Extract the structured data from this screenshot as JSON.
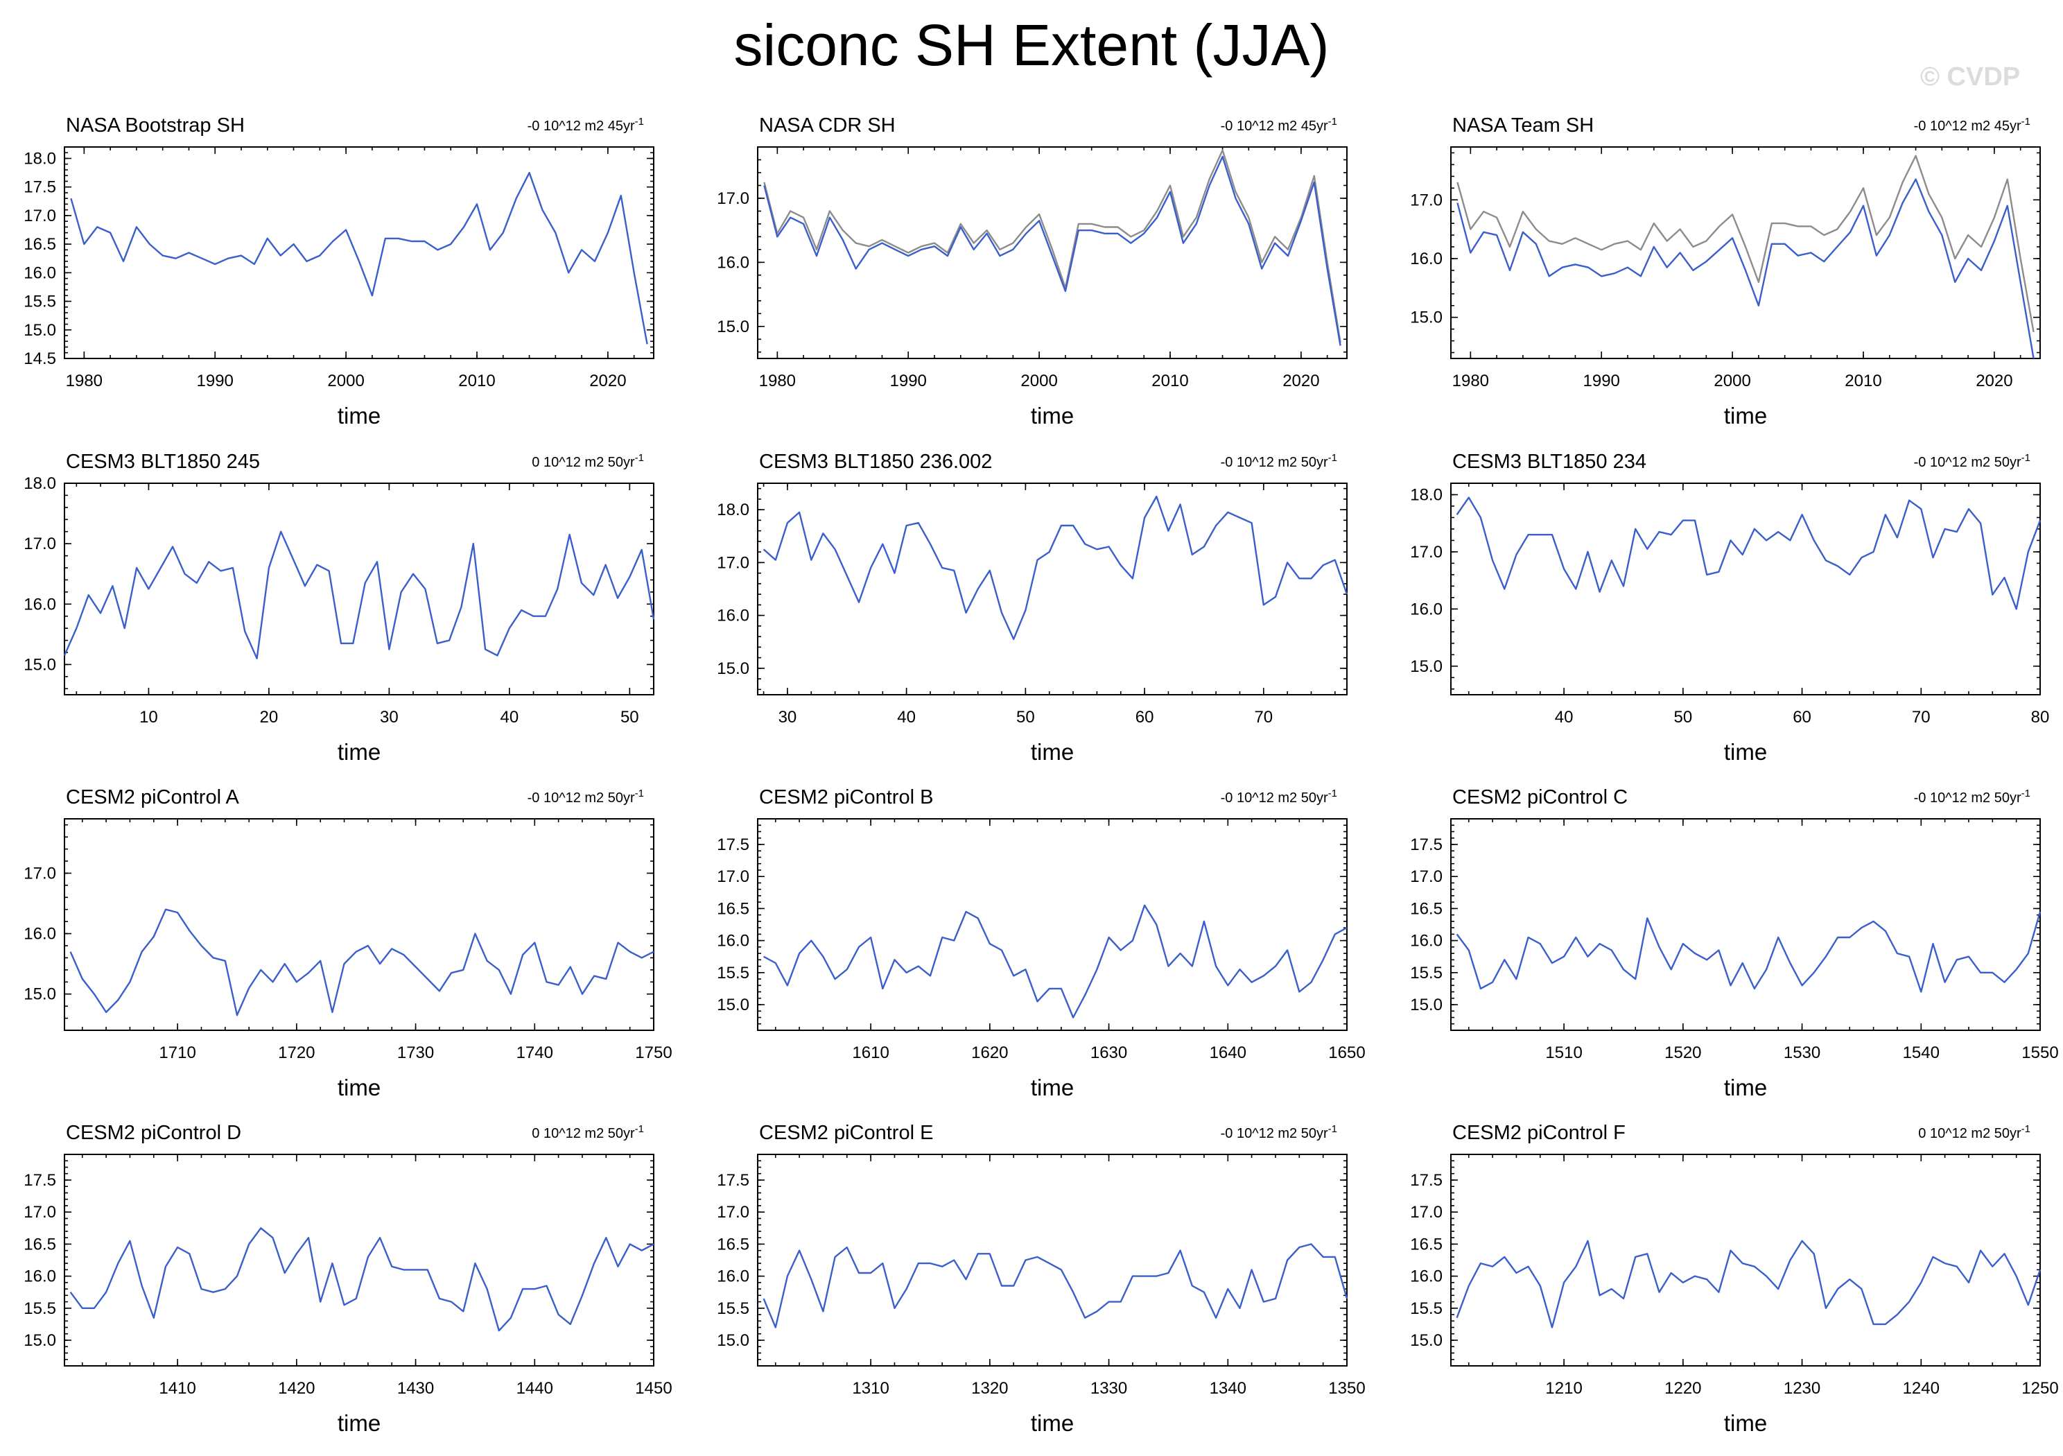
{
  "title": "siconc SH Extent (JJA)",
  "copyright": "© CVDP",
  "colors": {
    "primary": "#3a5fcd",
    "secondary": "#8c8c8c"
  },
  "chart_data": [
    {
      "type": "line",
      "title": "NASA Bootstrap SH",
      "trend": "-0 10^12 m2 45yr",
      "trend_sup": "-1",
      "xlabel": "time",
      "xlim": [
        1978.5,
        2023.5
      ],
      "ylim": [
        14.5,
        18.2
      ],
      "xticks": [
        1980,
        1990,
        2000,
        2010,
        2020
      ],
      "yticks": [
        14.5,
        15.0,
        15.5,
        16.0,
        16.5,
        17.0,
        17.5,
        18.0
      ],
      "x_start": 1979,
      "series": [
        {
          "values": [
            17.3,
            16.5,
            16.8,
            16.7,
            16.2,
            16.8,
            16.5,
            16.3,
            16.25,
            16.35,
            16.25,
            16.15,
            16.25,
            16.3,
            16.15,
            16.6,
            16.3,
            16.5,
            16.2,
            16.3,
            16.55,
            16.75,
            16.2,
            15.6,
            16.6,
            16.6,
            16.55,
            16.55,
            16.4,
            16.5,
            16.8,
            17.2,
            16.4,
            16.7,
            17.3,
            17.75,
            17.1,
            16.7,
            16.0,
            16.4,
            16.2,
            16.7,
            17.35,
            16.0,
            14.75
          ]
        }
      ]
    },
    {
      "type": "line",
      "title": "NASA CDR SH",
      "trend": "-0 10^12 m2 45yr",
      "trend_sup": "-1",
      "xlabel": "time",
      "xlim": [
        1978.5,
        2023.5
      ],
      "ylim": [
        14.5,
        17.8
      ],
      "xticks": [
        1980,
        1990,
        2000,
        2010,
        2020
      ],
      "yticks": [
        15.0,
        16.0,
        17.0
      ],
      "x_start": 1979,
      "series": [
        {
          "values": [
            17.25,
            16.45,
            16.8,
            16.7,
            16.2,
            16.8,
            16.5,
            16.3,
            16.25,
            16.35,
            16.25,
            16.15,
            16.25,
            16.3,
            16.15,
            16.6,
            16.3,
            16.5,
            16.2,
            16.3,
            16.55,
            16.75,
            16.2,
            15.6,
            16.6,
            16.6,
            16.55,
            16.55,
            16.4,
            16.5,
            16.8,
            17.2,
            16.4,
            16.7,
            17.3,
            17.75,
            17.1,
            16.7,
            16.0,
            16.4,
            16.2,
            16.7,
            17.35,
            16.0,
            14.75
          ],
          "color": "secondary"
        },
        {
          "values": [
            17.2,
            16.4,
            16.7,
            16.6,
            16.1,
            16.7,
            16.35,
            15.9,
            16.2,
            16.3,
            16.2,
            16.1,
            16.2,
            16.25,
            16.1,
            16.55,
            16.2,
            16.45,
            16.1,
            16.2,
            16.45,
            16.65,
            16.1,
            15.55,
            16.5,
            16.5,
            16.45,
            16.45,
            16.3,
            16.45,
            16.7,
            17.1,
            16.3,
            16.6,
            17.2,
            17.65,
            17.0,
            16.6,
            15.9,
            16.3,
            16.1,
            16.65,
            17.25,
            15.9,
            14.7
          ],
          "color": "primary"
        }
      ]
    },
    {
      "type": "line",
      "title": "NASA Team SH",
      "trend": "-0 10^12 m2 45yr",
      "trend_sup": "-1",
      "xlabel": "time",
      "xlim": [
        1978.5,
        2023.5
      ],
      "ylim": [
        14.3,
        17.9
      ],
      "xticks": [
        1980,
        1990,
        2000,
        2010,
        2020
      ],
      "yticks": [
        15.0,
        16.0,
        17.0
      ],
      "x_start": 1979,
      "series": [
        {
          "values": [
            17.3,
            16.5,
            16.8,
            16.7,
            16.2,
            16.8,
            16.5,
            16.3,
            16.25,
            16.35,
            16.25,
            16.15,
            16.25,
            16.3,
            16.15,
            16.6,
            16.3,
            16.5,
            16.2,
            16.3,
            16.55,
            16.75,
            16.2,
            15.6,
            16.6,
            16.6,
            16.55,
            16.55,
            16.4,
            16.5,
            16.8,
            17.2,
            16.4,
            16.7,
            17.3,
            17.75,
            17.1,
            16.7,
            16.0,
            16.4,
            16.2,
            16.7,
            17.35,
            16.0,
            14.75
          ],
          "color": "secondary"
        },
        {
          "values": [
            16.95,
            16.1,
            16.45,
            16.4,
            15.8,
            16.45,
            16.25,
            15.7,
            15.85,
            15.9,
            15.85,
            15.7,
            15.75,
            15.85,
            15.7,
            16.2,
            15.85,
            16.1,
            15.8,
            15.95,
            16.15,
            16.35,
            15.8,
            15.2,
            16.25,
            16.25,
            16.05,
            16.1,
            15.95,
            16.2,
            16.45,
            16.9,
            16.05,
            16.4,
            16.95,
            17.35,
            16.8,
            16.4,
            15.6,
            16.0,
            15.8,
            16.3,
            16.9,
            15.6,
            14.3
          ],
          "color": "primary"
        }
      ]
    },
    {
      "type": "line",
      "title": "CESM3 BLT1850 245",
      "trend": "0 10^12 m2 50yr",
      "trend_sup": "-1",
      "xlabel": "time",
      "xlim": [
        3,
        52
      ],
      "ylim": [
        14.5,
        18.0
      ],
      "xticks": [
        10,
        20,
        30,
        40,
        50
      ],
      "yticks": [
        15.0,
        16.0,
        17.0,
        18.0
      ],
      "x_start": 3,
      "series": [
        {
          "values": [
            15.15,
            15.6,
            16.15,
            15.85,
            16.3,
            15.6,
            16.6,
            16.25,
            16.6,
            16.95,
            16.5,
            16.35,
            16.7,
            16.55,
            16.6,
            15.55,
            15.1,
            16.6,
            17.2,
            16.75,
            16.3,
            16.65,
            16.55,
            15.35,
            15.35,
            16.35,
            16.7,
            15.25,
            16.2,
            16.5,
            16.25,
            15.35,
            15.4,
            15.95,
            17.0,
            15.25,
            15.15,
            15.6,
            15.9,
            15.8,
            15.8,
            16.25,
            17.15,
            16.35,
            16.15,
            16.65,
            16.1,
            16.45,
            16.9,
            15.75
          ],
          "color": "primary"
        }
      ]
    },
    {
      "type": "line",
      "title": "CESM3 BLT1850 236.002",
      "trend": "-0 10^12 m2 50yr",
      "trend_sup": "-1",
      "xlabel": "time",
      "xlim": [
        27.5,
        77
      ],
      "ylim": [
        14.5,
        18.5
      ],
      "xticks": [
        30,
        40,
        50,
        60,
        70
      ],
      "yticks": [
        15.0,
        16.0,
        17.0,
        18.0
      ],
      "x_start": 28,
      "series": [
        {
          "values": [
            17.25,
            17.05,
            17.75,
            17.95,
            17.05,
            17.55,
            17.25,
            16.75,
            16.25,
            16.9,
            17.35,
            16.8,
            17.7,
            17.75,
            17.35,
            16.9,
            16.85,
            16.05,
            16.5,
            16.85,
            16.05,
            15.55,
            16.1,
            17.05,
            17.2,
            17.7,
            17.7,
            17.35,
            17.25,
            17.3,
            16.95,
            16.7,
            17.85,
            18.25,
            17.6,
            18.1,
            17.15,
            17.3,
            17.7,
            17.95,
            17.85,
            17.75,
            16.2,
            16.35,
            17.0,
            16.7,
            16.7,
            16.95,
            17.05,
            16.4
          ],
          "color": "primary"
        }
      ]
    },
    {
      "type": "line",
      "title": "CESM3 BLT1850 234",
      "trend": "-0 10^12 m2 50yr",
      "trend_sup": "-1",
      "xlabel": "time",
      "xlim": [
        30.5,
        80
      ],
      "ylim": [
        14.5,
        18.2
      ],
      "xticks": [
        40,
        50,
        60,
        70,
        80
      ],
      "yticks": [
        15.0,
        16.0,
        17.0,
        18.0
      ],
      "x_start": 31,
      "series": [
        {
          "values": [
            17.65,
            17.95,
            17.6,
            16.85,
            16.35,
            16.95,
            17.3,
            17.3,
            17.3,
            16.7,
            16.35,
            17.0,
            16.3,
            16.85,
            16.4,
            17.4,
            17.05,
            17.35,
            17.3,
            17.55,
            17.55,
            16.6,
            16.65,
            17.2,
            16.95,
            17.4,
            17.2,
            17.35,
            17.2,
            17.65,
            17.2,
            16.85,
            16.75,
            16.6,
            16.9,
            17.0,
            17.65,
            17.25,
            17.9,
            17.75,
            16.9,
            17.4,
            17.35,
            17.75,
            17.5,
            16.25,
            16.55,
            16.0,
            17.0,
            17.55
          ],
          "color": "primary"
        }
      ]
    },
    {
      "type": "line",
      "title": "CESM2 piControl A",
      "trend": "-0 10^12 m2 50yr",
      "trend_sup": "-1",
      "xlabel": "time",
      "xlim": [
        1700.5,
        1750
      ],
      "ylim": [
        14.4,
        17.9
      ],
      "xticks": [
        1710,
        1720,
        1730,
        1740,
        1750
      ],
      "yticks": [
        15.0,
        16.0,
        17.0
      ],
      "x_start": 1701,
      "series": [
        {
          "values": [
            15.7,
            15.25,
            15.0,
            14.7,
            14.9,
            15.2,
            15.7,
            15.95,
            16.4,
            16.35,
            16.05,
            15.8,
            15.6,
            15.55,
            14.65,
            15.1,
            15.4,
            15.2,
            15.5,
            15.2,
            15.35,
            15.55,
            14.7,
            15.5,
            15.7,
            15.8,
            15.5,
            15.75,
            15.65,
            15.45,
            15.25,
            15.05,
            15.35,
            15.4,
            16.0,
            15.55,
            15.4,
            15.0,
            15.65,
            15.85,
            15.2,
            15.15,
            15.45,
            15.0,
            15.3,
            15.25,
            15.85,
            15.7,
            15.6,
            15.7
          ],
          "color": "primary"
        }
      ]
    },
    {
      "type": "line",
      "title": "CESM2 piControl B",
      "trend": "-0 10^12 m2 50yr",
      "trend_sup": "-1",
      "xlabel": "time",
      "xlim": [
        1600.5,
        1650
      ],
      "ylim": [
        14.6,
        17.9
      ],
      "xticks": [
        1610,
        1620,
        1630,
        1640,
        1650
      ],
      "yticks": [
        15.0,
        15.5,
        16.0,
        16.5,
        17.0,
        17.5
      ],
      "x_start": 1601,
      "series": [
        {
          "values": [
            15.75,
            15.65,
            15.3,
            15.8,
            16.0,
            15.75,
            15.4,
            15.55,
            15.9,
            16.05,
            15.25,
            15.7,
            15.5,
            15.6,
            15.45,
            16.05,
            16.0,
            16.45,
            16.35,
            15.95,
            15.85,
            15.45,
            15.55,
            15.05,
            15.25,
            15.25,
            14.8,
            15.15,
            15.55,
            16.05,
            15.85,
            16.0,
            16.55,
            16.25,
            15.6,
            15.8,
            15.6,
            16.3,
            15.6,
            15.3,
            15.55,
            15.35,
            15.45,
            15.6,
            15.85,
            15.2,
            15.35,
            15.7,
            16.1,
            16.2
          ],
          "color": "primary"
        }
      ]
    },
    {
      "type": "line",
      "title": "CESM2 piControl C",
      "trend": "-0 10^12 m2 50yr",
      "trend_sup": "-1",
      "xlabel": "time",
      "xlim": [
        1500.5,
        1550
      ],
      "ylim": [
        14.6,
        17.9
      ],
      "xticks": [
        1510,
        1520,
        1530,
        1540,
        1550
      ],
      "yticks": [
        15.0,
        15.5,
        16.0,
        16.5,
        17.0,
        17.5
      ],
      "x_start": 1501,
      "series": [
        {
          "values": [
            16.1,
            15.85,
            15.25,
            15.35,
            15.7,
            15.4,
            16.05,
            15.95,
            15.65,
            15.75,
            16.05,
            15.75,
            15.95,
            15.85,
            15.55,
            15.4,
            16.35,
            15.9,
            15.55,
            15.95,
            15.8,
            15.7,
            15.85,
            15.3,
            15.65,
            15.25,
            15.55,
            16.05,
            15.65,
            15.3,
            15.5,
            15.75,
            16.05,
            16.05,
            16.2,
            16.3,
            16.15,
            15.8,
            15.75,
            15.2,
            15.95,
            15.35,
            15.7,
            15.75,
            15.5,
            15.5,
            15.35,
            15.55,
            15.8,
            16.45
          ],
          "color": "primary"
        }
      ]
    },
    {
      "type": "line",
      "title": "CESM2 piControl D",
      "trend": "0 10^12 m2 50yr",
      "trend_sup": "-1",
      "xlabel": "time",
      "xlim": [
        1400.5,
        1450
      ],
      "ylim": [
        14.6,
        17.9
      ],
      "xticks": [
        1410,
        1420,
        1430,
        1440,
        1450
      ],
      "yticks": [
        15.0,
        15.5,
        16.0,
        16.5,
        17.0,
        17.5
      ],
      "x_start": 1401,
      "series": [
        {
          "values": [
            15.75,
            15.5,
            15.5,
            15.75,
            16.2,
            16.55,
            15.85,
            15.35,
            16.15,
            16.45,
            16.35,
            15.8,
            15.75,
            15.8,
            16.0,
            16.5,
            16.75,
            16.6,
            16.05,
            16.35,
            16.6,
            15.6,
            16.2,
            15.55,
            15.65,
            16.3,
            16.6,
            16.15,
            16.1,
            16.1,
            16.1,
            15.65,
            15.6,
            15.45,
            16.2,
            15.8,
            15.15,
            15.35,
            15.8,
            15.8,
            15.85,
            15.4,
            15.25,
            15.7,
            16.2,
            16.6,
            16.15,
            16.5,
            16.4,
            16.5
          ],
          "color": "primary"
        }
      ]
    },
    {
      "type": "line",
      "title": "CESM2 piControl E",
      "trend": "-0 10^12 m2 50yr",
      "trend_sup": "-1",
      "xlabel": "time",
      "xlim": [
        1300.5,
        1350
      ],
      "ylim": [
        14.6,
        17.9
      ],
      "xticks": [
        1310,
        1320,
        1330,
        1340,
        1350
      ],
      "yticks": [
        15.0,
        15.5,
        16.0,
        16.5,
        17.0,
        17.5
      ],
      "x_start": 1301,
      "series": [
        {
          "values": [
            15.65,
            15.2,
            16.0,
            16.4,
            15.95,
            15.45,
            16.3,
            16.45,
            16.05,
            16.05,
            16.2,
            15.5,
            15.8,
            16.2,
            16.2,
            16.15,
            16.25,
            15.95,
            16.35,
            16.35,
            15.85,
            15.85,
            16.25,
            16.3,
            16.2,
            16.1,
            15.75,
            15.35,
            15.45,
            15.6,
            15.6,
            16.0,
            16.0,
            16.0,
            16.05,
            16.4,
            15.85,
            15.75,
            15.35,
            15.8,
            15.5,
            16.1,
            15.6,
            15.65,
            16.25,
            16.45,
            16.5,
            16.3,
            16.3,
            15.65
          ],
          "color": "primary"
        }
      ]
    },
    {
      "type": "line",
      "title": "CESM2 piControl F",
      "trend": "0 10^12 m2 50yr",
      "trend_sup": "-1",
      "xlabel": "time",
      "xlim": [
        1200.5,
        1250
      ],
      "ylim": [
        14.6,
        17.9
      ],
      "xticks": [
        1210,
        1220,
        1230,
        1240,
        1250
      ],
      "yticks": [
        15.0,
        15.5,
        16.0,
        16.5,
        17.0,
        17.5
      ],
      "x_start": 1201,
      "series": [
        {
          "values": [
            15.35,
            15.85,
            16.2,
            16.15,
            16.3,
            16.05,
            16.15,
            15.85,
            15.2,
            15.9,
            16.15,
            16.55,
            15.7,
            15.8,
            15.65,
            16.3,
            16.35,
            15.75,
            16.05,
            15.9,
            16.0,
            15.95,
            15.75,
            16.4,
            16.2,
            16.15,
            16.0,
            15.8,
            16.25,
            16.55,
            16.35,
            15.5,
            15.8,
            15.95,
            15.8,
            15.25,
            15.25,
            15.4,
            15.6,
            15.9,
            16.3,
            16.2,
            16.15,
            15.9,
            16.4,
            16.15,
            16.35,
            16.0,
            15.55,
            16.1
          ],
          "color": "primary"
        }
      ]
    }
  ]
}
